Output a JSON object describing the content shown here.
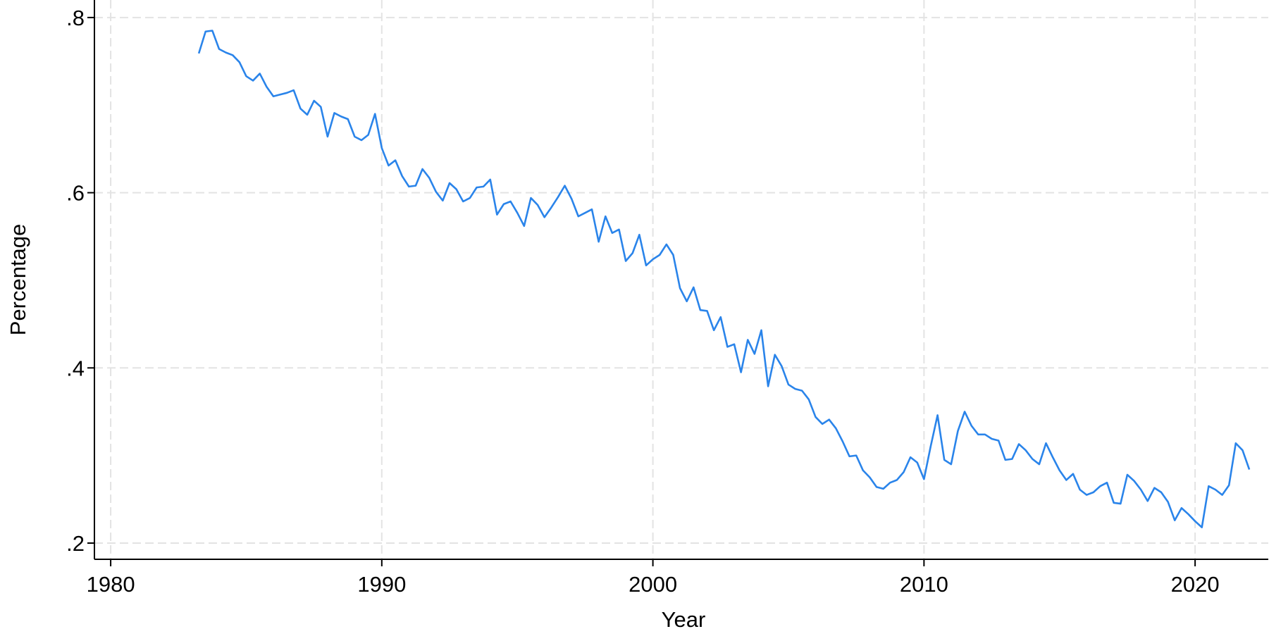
{
  "chart_data": {
    "type": "line",
    "x_label": "Year",
    "y_label": "Percentage",
    "xlim": [
      1979.4,
      2022.7
    ],
    "ylim": [
      0.1815,
      0.82
    ],
    "xticks": [
      1980,
      1990,
      2000,
      2010,
      2020
    ],
    "yticks": [
      {
        "value": 0.2,
        "label": ".2"
      },
      {
        "value": 0.4,
        "label": ".4"
      },
      {
        "value": 0.6,
        "label": ".6"
      },
      {
        "value": 0.8,
        "label": ".8"
      }
    ],
    "grid": true,
    "x": [
      1983.25,
      1983.5,
      1983.75,
      1984,
      1984.25,
      1984.5,
      1984.75,
      1985,
      1985.25,
      1985.5,
      1985.75,
      1986,
      1986.25,
      1986.5,
      1986.75,
      1987,
      1987.25,
      1987.5,
      1987.75,
      1988,
      1988.25,
      1988.5,
      1988.75,
      1989,
      1989.25,
      1989.5,
      1989.75,
      1990,
      1990.25,
      1990.5,
      1990.75,
      1991,
      1991.25,
      1991.5,
      1991.75,
      1992,
      1992.25,
      1992.5,
      1992.75,
      1993,
      1993.25,
      1993.5,
      1993.75,
      1994,
      1994.25,
      1994.5,
      1994.75,
      1995,
      1995.25,
      1995.5,
      1995.75,
      1996,
      1996.25,
      1996.5,
      1996.75,
      1997,
      1997.25,
      1997.5,
      1997.75,
      1998,
      1998.25,
      1998.5,
      1998.75,
      1999,
      1999.25,
      1999.5,
      1999.75,
      2000,
      2000.25,
      2000.5,
      2000.75,
      2001,
      2001.25,
      2001.5,
      2001.75,
      2002,
      2002.25,
      2002.5,
      2002.75,
      2003,
      2003.25,
      2003.5,
      2003.75,
      2004,
      2004.25,
      2004.5,
      2004.75,
      2005,
      2005.25,
      2005.5,
      2005.75,
      2006,
      2006.25,
      2006.5,
      2006.75,
      2007,
      2007.25,
      2007.5,
      2007.75,
      2008,
      2008.25,
      2008.5,
      2008.75,
      2009,
      2009.25,
      2009.5,
      2009.75,
      2010,
      2010.25,
      2010.5,
      2010.75,
      2011,
      2011.25,
      2011.5,
      2011.75,
      2012,
      2012.25,
      2012.5,
      2012.75,
      2013,
      2013.25,
      2013.5,
      2013.75,
      2014,
      2014.25,
      2014.5,
      2014.75,
      2015,
      2015.25,
      2015.5,
      2015.75,
      2016,
      2016.25,
      2016.5,
      2016.75,
      2017,
      2017.25,
      2017.5,
      2017.75,
      2018,
      2018.25,
      2018.5,
      2018.75,
      2019,
      2019.25,
      2019.5,
      2019.75,
      2020,
      2020.25,
      2020.5,
      2020.75,
      2021,
      2021.25,
      2021.5,
      2021.75,
      2022
    ],
    "series": [
      {
        "color": "#2a84ea",
        "values": [
          0.759,
          0.784,
          0.785,
          0.764,
          0.76,
          0.757,
          0.749,
          0.733,
          0.728,
          0.736,
          0.721,
          0.71,
          0.712,
          0.714,
          0.717,
          0.696,
          0.689,
          0.705,
          0.698,
          0.664,
          0.691,
          0.687,
          0.684,
          0.664,
          0.66,
          0.666,
          0.69,
          0.651,
          0.631,
          0.637,
          0.619,
          0.607,
          0.608,
          0.627,
          0.617,
          0.601,
          0.591,
          0.611,
          0.604,
          0.59,
          0.594,
          0.606,
          0.607,
          0.615,
          0.575,
          0.587,
          0.59,
          0.577,
          0.562,
          0.594,
          0.586,
          0.572,
          0.583,
          0.595,
          0.608,
          0.593,
          0.573,
          0.577,
          0.581,
          0.544,
          0.573,
          0.554,
          0.558,
          0.522,
          0.531,
          0.552,
          0.517,
          0.524,
          0.529,
          0.541,
          0.529,
          0.491,
          0.476,
          0.492,
          0.466,
          0.465,
          0.443,
          0.458,
          0.424,
          0.427,
          0.395,
          0.432,
          0.416,
          0.443,
          0.379,
          0.415,
          0.402,
          0.381,
          0.376,
          0.374,
          0.364,
          0.344,
          0.336,
          0.341,
          0.331,
          0.316,
          0.299,
          0.3,
          0.283,
          0.275,
          0.264,
          0.262,
          0.269,
          0.272,
          0.281,
          0.298,
          0.292,
          0.273,
          0.311,
          0.346,
          0.295,
          0.29,
          0.328,
          0.35,
          0.334,
          0.324,
          0.324,
          0.319,
          0.317,
          0.295,
          0.296,
          0.313,
          0.306,
          0.296,
          0.29,
          0.314,
          0.298,
          0.283,
          0.272,
          0.279,
          0.261,
          0.255,
          0.258,
          0.265,
          0.269,
          0.246,
          0.245,
          0.278,
          0.271,
          0.261,
          0.248,
          0.263,
          0.258,
          0.247,
          0.226,
          0.24,
          0.233,
          0.225,
          0.218,
          0.265,
          0.261,
          0.255,
          0.266,
          0.314,
          0.306,
          0.284
        ]
      }
    ]
  }
}
